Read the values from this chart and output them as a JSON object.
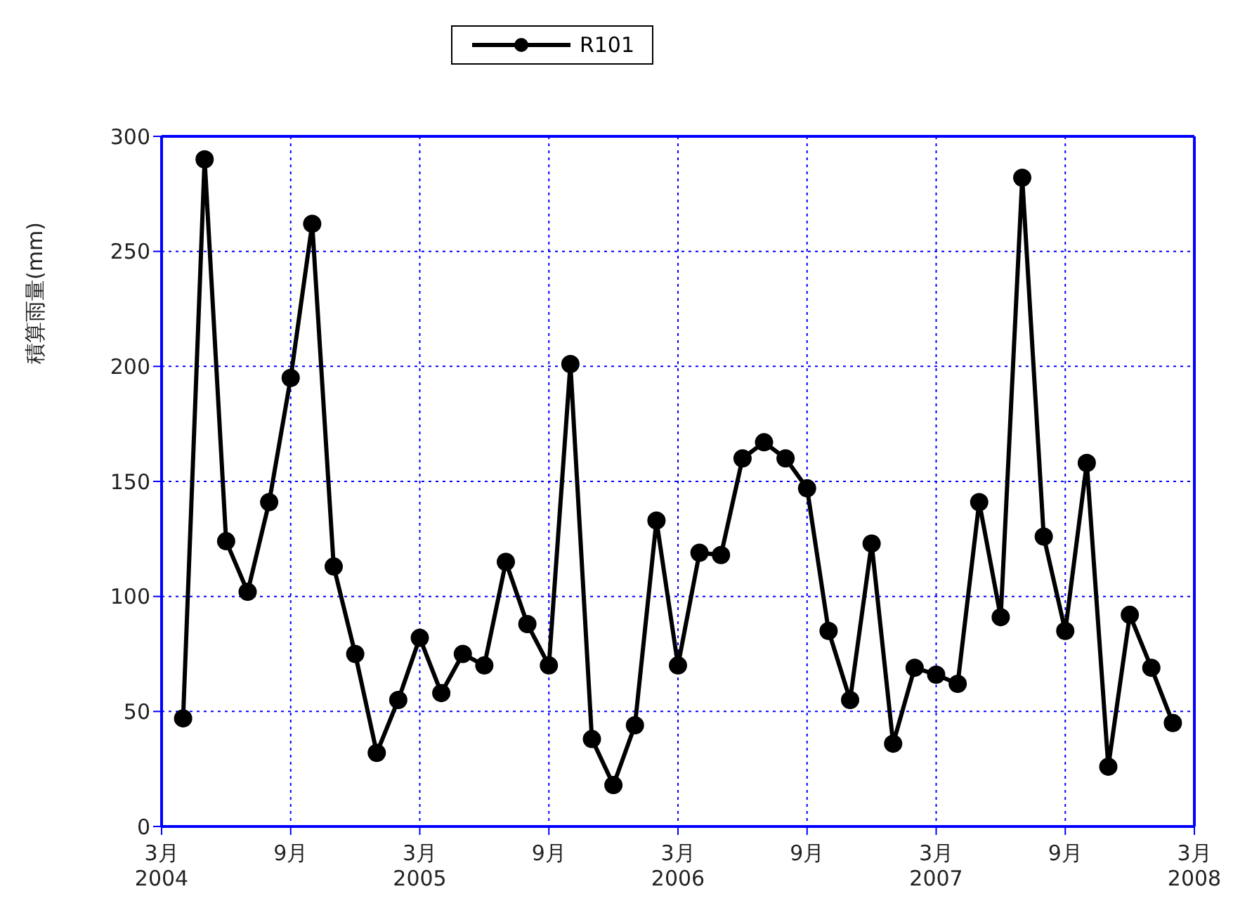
{
  "chart_data": {
    "type": "line",
    "ylabel": "積算雨量(mm)",
    "x": [
      "2004-04",
      "2004-05",
      "2004-06",
      "2004-07",
      "2004-08",
      "2004-09",
      "2004-10",
      "2004-11",
      "2004-12",
      "2005-01",
      "2005-02",
      "2005-03",
      "2005-04",
      "2005-05",
      "2005-06",
      "2005-07",
      "2005-08",
      "2005-09",
      "2005-10",
      "2005-11",
      "2005-12",
      "2006-01",
      "2006-02",
      "2006-03",
      "2006-04",
      "2006-05",
      "2006-06",
      "2006-07",
      "2006-08",
      "2006-09",
      "2006-10",
      "2006-11",
      "2006-12",
      "2007-01",
      "2007-02",
      "2007-03",
      "2007-04",
      "2007-05",
      "2007-06",
      "2007-07",
      "2007-08",
      "2007-09",
      "2007-10",
      "2007-11",
      "2007-12",
      "2008-01",
      "2008-02"
    ],
    "series": [
      {
        "name": "R101",
        "color": "#000000",
        "values": [
          47,
          290,
          124,
          102,
          141,
          195,
          262,
          113,
          75,
          32,
          55,
          82,
          58,
          75,
          70,
          115,
          88,
          70,
          201,
          38,
          18,
          44,
          133,
          70,
          119,
          118,
          160,
          167,
          160,
          147,
          85,
          55,
          123,
          36,
          69,
          66,
          62,
          141,
          91,
          282,
          126,
          85,
          158,
          26,
          92,
          69,
          45
        ]
      }
    ],
    "xlim": [
      "2004-03",
      "2008-03"
    ],
    "xticks": [
      {
        "value": "2004-03",
        "label": "3月\n2004"
      },
      {
        "value": "2004-09",
        "label": "9月"
      },
      {
        "value": "2005-03",
        "label": "3月\n2005"
      },
      {
        "value": "2005-09",
        "label": "9月"
      },
      {
        "value": "2006-03",
        "label": "3月\n2006"
      },
      {
        "value": "2006-09",
        "label": "9月"
      },
      {
        "value": "2007-03",
        "label": "3月\n2007"
      },
      {
        "value": "2007-09",
        "label": "9月"
      },
      {
        "value": "2008-03",
        "label": "3月\n2008"
      }
    ],
    "ylim": [
      0,
      300
    ],
    "yticks": [
      0,
      50,
      100,
      150,
      200,
      250,
      300
    ],
    "grid": true,
    "legend": "top",
    "marker": "circle",
    "line_style": "solid"
  }
}
